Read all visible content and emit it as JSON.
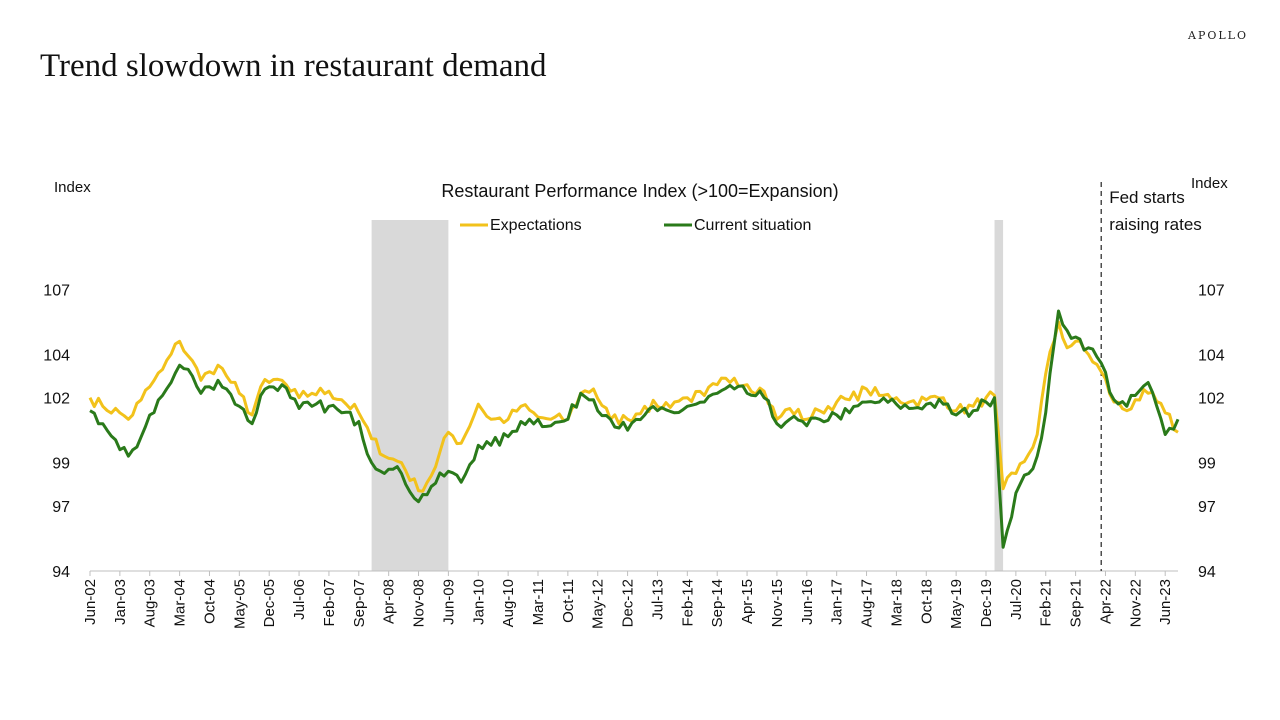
{
  "brand": "APOLLO",
  "slide_title": "Trend slowdown in restaurant demand",
  "chart_data": {
    "type": "line",
    "title": "Restaurant Performance Index (>100=Expansion)",
    "ylabel_left": "Index",
    "ylabel_right": "Index",
    "ylim": [
      94,
      109
    ],
    "yticks": [
      94,
      97,
      99,
      102,
      104,
      107
    ],
    "x_start": "Jun-02",
    "x_end": "Sep-23",
    "xticks": [
      "Jun-02",
      "Jan-03",
      "Aug-03",
      "Mar-04",
      "Oct-04",
      "May-05",
      "Dec-05",
      "Jul-06",
      "Feb-07",
      "Sep-07",
      "Apr-08",
      "Nov-08",
      "Jun-09",
      "Jan-10",
      "Aug-10",
      "Mar-11",
      "Oct-11",
      "May-12",
      "Dec-12",
      "Jul-13",
      "Feb-14",
      "Sep-14",
      "Apr-15",
      "Nov-15",
      "Jun-16",
      "Jan-17",
      "Aug-17",
      "Mar-18",
      "Oct-18",
      "May-19",
      "Dec-19",
      "Jul-20",
      "Feb-21",
      "Sep-21",
      "Apr-22",
      "Nov-22",
      "Jun-23"
    ],
    "grid": false,
    "legend_position": "top",
    "shaded_periods": [
      {
        "start": "Dec-07",
        "end": "Jun-09"
      },
      {
        "start": "Feb-20",
        "end": "Apr-20"
      }
    ],
    "annotation": {
      "text": [
        "Fed starts",
        "raising rates"
      ],
      "date": "Mar-22"
    },
    "colors": {
      "expectations": "#f2c21b",
      "current": "#2a7a1a",
      "shade": "#d9d9d9"
    },
    "series": [
      {
        "name": "Expectations",
        "key": "expectations",
        "knots": [
          [
            "Jun-02",
            102.0
          ],
          [
            "Sep-02",
            101.6
          ],
          [
            "Jan-03",
            101.3
          ],
          [
            "Mar-03",
            101.0
          ],
          [
            "Jun-03",
            101.9
          ],
          [
            "Aug-03",
            102.5
          ],
          [
            "Nov-03",
            103.3
          ],
          [
            "Jan-04",
            104.0
          ],
          [
            "Mar-04",
            104.6
          ],
          [
            "Jun-04",
            103.7
          ],
          [
            "Aug-04",
            102.8
          ],
          [
            "Oct-04",
            103.2
          ],
          [
            "Dec-04",
            103.5
          ],
          [
            "Feb-05",
            103.0
          ],
          [
            "May-05",
            102.2
          ],
          [
            "Aug-05",
            101.2
          ],
          [
            "Oct-05",
            102.5
          ],
          [
            "Dec-05",
            102.7
          ],
          [
            "Mar-06",
            102.8
          ],
          [
            "May-06",
            102.3
          ],
          [
            "Jul-06",
            102.0
          ],
          [
            "Oct-06",
            102.2
          ],
          [
            "Feb-07",
            102.3
          ],
          [
            "May-07",
            101.9
          ],
          [
            "Sep-07",
            101.3
          ],
          [
            "Dec-07",
            100.1
          ],
          [
            "Apr-08",
            99.2
          ],
          [
            "Jul-08",
            99.0
          ],
          [
            "Nov-08",
            97.7
          ],
          [
            "Feb-09",
            98.4
          ],
          [
            "Jun-09",
            100.4
          ],
          [
            "Sep-09",
            99.9
          ],
          [
            "Jan-10",
            101.7
          ],
          [
            "Apr-10",
            101.0
          ],
          [
            "Aug-10",
            101.0
          ],
          [
            "Nov-10",
            101.6
          ],
          [
            "Mar-11",
            101.1
          ],
          [
            "Jun-11",
            101.0
          ],
          [
            "Oct-11",
            101.0
          ],
          [
            "Jan-12",
            102.2
          ],
          [
            "Apr-12",
            102.4
          ],
          [
            "Aug-12",
            101.0
          ],
          [
            "Dec-12",
            101.0
          ],
          [
            "Apr-13",
            101.6
          ],
          [
            "Jul-13",
            101.6
          ],
          [
            "Nov-13",
            101.8
          ],
          [
            "Feb-14",
            102.0
          ],
          [
            "Jun-14",
            102.1
          ],
          [
            "Sep-14",
            102.6
          ],
          [
            "Jan-15",
            102.9
          ],
          [
            "Apr-15",
            102.6
          ],
          [
            "Aug-15",
            102.3
          ],
          [
            "Nov-15",
            101.0
          ],
          [
            "Feb-16",
            101.5
          ],
          [
            "Jun-16",
            101.0
          ],
          [
            "Sep-16",
            101.4
          ],
          [
            "Jan-17",
            101.8
          ],
          [
            "Apr-17",
            101.9
          ],
          [
            "Aug-17",
            102.4
          ],
          [
            "Nov-17",
            102.1
          ],
          [
            "Mar-18",
            102.0
          ],
          [
            "Jun-18",
            101.8
          ],
          [
            "Oct-18",
            101.9
          ],
          [
            "Feb-19",
            102.0
          ],
          [
            "May-19",
            101.4
          ],
          [
            "Sep-19",
            101.6
          ],
          [
            "Dec-19",
            102.0
          ],
          [
            "Feb-20",
            102.1
          ],
          [
            "Apr-20",
            97.8
          ],
          [
            "Jul-20",
            98.5
          ],
          [
            "Oct-20",
            99.4
          ],
          [
            "Dec-20",
            100.3
          ],
          [
            "Feb-21",
            103.1
          ],
          [
            "May-21",
            105.5
          ],
          [
            "Jul-21",
            104.3
          ],
          [
            "Sep-21",
            104.6
          ],
          [
            "Dec-21",
            104.0
          ],
          [
            "Mar-22",
            103.2
          ],
          [
            "Jun-22",
            101.8
          ],
          [
            "Sep-22",
            101.4
          ],
          [
            "Nov-22",
            101.9
          ],
          [
            "Feb-23",
            102.2
          ],
          [
            "Jun-23",
            101.3
          ],
          [
            "Sep-23",
            100.4
          ]
        ]
      },
      {
        "name": "Current situation",
        "key": "current",
        "knots": [
          [
            "Jun-02",
            101.4
          ],
          [
            "Sep-02",
            100.8
          ],
          [
            "Jan-03",
            99.6
          ],
          [
            "Mar-03",
            99.3
          ],
          [
            "Jun-03",
            100.2
          ],
          [
            "Aug-03",
            101.2
          ],
          [
            "Nov-03",
            102.1
          ],
          [
            "Jan-04",
            102.7
          ],
          [
            "Mar-04",
            103.5
          ],
          [
            "Jun-04",
            103.0
          ],
          [
            "Aug-04",
            102.2
          ],
          [
            "Oct-04",
            102.5
          ],
          [
            "Dec-04",
            102.8
          ],
          [
            "Feb-05",
            102.4
          ],
          [
            "May-05",
            101.6
          ],
          [
            "Aug-05",
            100.8
          ],
          [
            "Oct-05",
            102.1
          ],
          [
            "Dec-05",
            102.5
          ],
          [
            "Mar-06",
            102.6
          ],
          [
            "May-06",
            102.0
          ],
          [
            "Jul-06",
            101.5
          ],
          [
            "Oct-06",
            101.6
          ],
          [
            "Feb-07",
            101.6
          ],
          [
            "May-07",
            101.3
          ],
          [
            "Sep-07",
            100.9
          ],
          [
            "Dec-07",
            99.0
          ],
          [
            "Apr-08",
            98.7
          ],
          [
            "Jul-08",
            98.5
          ],
          [
            "Nov-08",
            97.2
          ],
          [
            "Feb-09",
            97.9
          ],
          [
            "Jun-09",
            98.6
          ],
          [
            "Sep-09",
            98.1
          ],
          [
            "Jan-10",
            99.8
          ],
          [
            "Apr-10",
            99.8
          ],
          [
            "Aug-10",
            100.2
          ],
          [
            "Nov-10",
            100.9
          ],
          [
            "Mar-11",
            101.0
          ],
          [
            "Jun-11",
            100.7
          ],
          [
            "Oct-11",
            101.0
          ],
          [
            "Jan-12",
            102.2
          ],
          [
            "Apr-12",
            101.9
          ],
          [
            "Aug-12",
            101.0
          ],
          [
            "Dec-12",
            100.5
          ],
          [
            "Apr-13",
            101.2
          ],
          [
            "Jul-13",
            101.4
          ],
          [
            "Nov-13",
            101.3
          ],
          [
            "Feb-14",
            101.6
          ],
          [
            "Jun-14",
            101.8
          ],
          [
            "Sep-14",
            102.2
          ],
          [
            "Jan-15",
            102.4
          ],
          [
            "Apr-15",
            102.2
          ],
          [
            "Aug-15",
            102.0
          ],
          [
            "Nov-15",
            100.8
          ],
          [
            "Feb-16",
            101.0
          ],
          [
            "Jun-16",
            100.7
          ],
          [
            "Sep-16",
            101.0
          ],
          [
            "Jan-17",
            101.2
          ],
          [
            "Apr-17",
            101.3
          ],
          [
            "Aug-17",
            101.8
          ],
          [
            "Nov-17",
            101.8
          ],
          [
            "Mar-18",
            101.7
          ],
          [
            "Jun-18",
            101.5
          ],
          [
            "Oct-18",
            101.7
          ],
          [
            "Feb-19",
            101.7
          ],
          [
            "May-19",
            101.2
          ],
          [
            "Sep-19",
            101.4
          ],
          [
            "Dec-19",
            101.8
          ],
          [
            "Feb-20",
            102.0
          ],
          [
            "Apr-20",
            95.1
          ],
          [
            "Jul-20",
            97.6
          ],
          [
            "Oct-20",
            98.5
          ],
          [
            "Dec-20",
            99.3
          ],
          [
            "Feb-21",
            101.3
          ],
          [
            "May-21",
            106.0
          ],
          [
            "Jul-21",
            105.1
          ],
          [
            "Sep-21",
            104.8
          ],
          [
            "Dec-21",
            104.3
          ],
          [
            "Mar-22",
            103.6
          ],
          [
            "Jun-22",
            101.9
          ],
          [
            "Sep-22",
            101.6
          ],
          [
            "Nov-22",
            102.1
          ],
          [
            "Feb-23",
            102.7
          ],
          [
            "Jun-23",
            100.3
          ],
          [
            "Sep-23",
            101.0
          ]
        ]
      }
    ]
  }
}
